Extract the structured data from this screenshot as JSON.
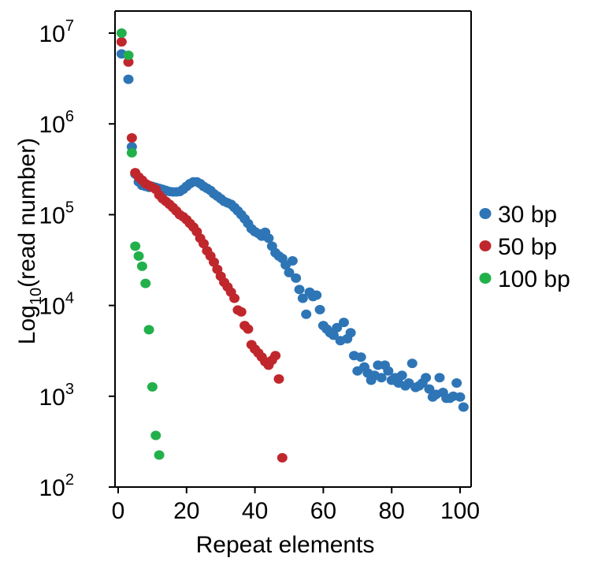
{
  "chart_data": {
    "type": "scatter",
    "xlabel": "Repeat elements",
    "ylabel": {
      "base": "Log",
      "sub": "10",
      "rest": "(read number)"
    },
    "xlim": [
      0,
      100
    ],
    "ylim_log10": [
      2,
      7
    ],
    "y_scale": "log",
    "x_ticks": [
      "0",
      "20",
      "40",
      "60",
      "80",
      "100"
    ],
    "y_ticks": [
      {
        "base": "10",
        "exp": "2"
      },
      {
        "base": "10",
        "exp": "3"
      },
      {
        "base": "10",
        "exp": "4"
      },
      {
        "base": "10",
        "exp": "5"
      },
      {
        "base": "10",
        "exp": "6"
      },
      {
        "base": "10",
        "exp": "7"
      }
    ],
    "grid": false,
    "legend_position": "right",
    "series": [
      {
        "name": "30 bp",
        "color": "#2e75b6",
        "points": [
          [
            1,
            5900000
          ],
          [
            3,
            3100000
          ],
          [
            4,
            560000
          ],
          [
            5,
            280000
          ],
          [
            6,
            230000
          ],
          [
            7,
            210000
          ],
          [
            8,
            205000
          ],
          [
            9,
            200000
          ],
          [
            10,
            205000
          ],
          [
            11,
            200000
          ],
          [
            12,
            195000
          ],
          [
            13,
            190000
          ],
          [
            14,
            185000
          ],
          [
            15,
            180000
          ],
          [
            16,
            178000
          ],
          [
            17,
            178000
          ],
          [
            18,
            180000
          ],
          [
            19,
            190000
          ],
          [
            20,
            205000
          ],
          [
            21,
            220000
          ],
          [
            22,
            230000
          ],
          [
            23,
            230000
          ],
          [
            24,
            220000
          ],
          [
            25,
            205000
          ],
          [
            26,
            195000
          ],
          [
            27,
            185000
          ],
          [
            28,
            170000
          ],
          [
            29,
            160000
          ],
          [
            30,
            150000
          ],
          [
            31,
            140000
          ],
          [
            32,
            135000
          ],
          [
            33,
            130000
          ],
          [
            34,
            120000
          ],
          [
            35,
            110000
          ],
          [
            36,
            100000
          ],
          [
            37,
            90000
          ],
          [
            38,
            80000
          ],
          [
            39,
            70000
          ],
          [
            40,
            65000
          ],
          [
            41,
            62000
          ],
          [
            42,
            58000
          ],
          [
            43,
            64000
          ],
          [
            44,
            55000
          ],
          [
            45,
            45000
          ],
          [
            46,
            38000
          ],
          [
            47,
            35000
          ],
          [
            48,
            33000
          ],
          [
            49,
            28000
          ],
          [
            50,
            23000
          ],
          [
            51,
            31000
          ],
          [
            52,
            20000
          ],
          [
            53,
            15000
          ],
          [
            54,
            12000
          ],
          [
            55,
            8000
          ],
          [
            56,
            14000
          ],
          [
            57,
            12500
          ],
          [
            58,
            13000
          ],
          [
            59,
            9000
          ],
          [
            60,
            6000
          ],
          [
            61,
            5500
          ],
          [
            62,
            5000
          ],
          [
            63,
            4700
          ],
          [
            64,
            5700
          ],
          [
            65,
            4100
          ],
          [
            66,
            6500
          ],
          [
            67,
            4300
          ],
          [
            68,
            5000
          ],
          [
            69,
            2800
          ],
          [
            70,
            1900
          ],
          [
            71,
            2700
          ],
          [
            72,
            2100
          ],
          [
            73,
            1800
          ],
          [
            74,
            1500
          ],
          [
            75,
            1700
          ],
          [
            76,
            2200
          ],
          [
            77,
            1600
          ],
          [
            78,
            2200
          ],
          [
            79,
            1900
          ],
          [
            80,
            1500
          ],
          [
            81,
            1600
          ],
          [
            82,
            1400
          ],
          [
            83,
            1700
          ],
          [
            84,
            1300
          ],
          [
            85,
            1400
          ],
          [
            86,
            2300
          ],
          [
            87,
            1250
          ],
          [
            88,
            1300
          ],
          [
            89,
            1400
          ],
          [
            90,
            1600
          ],
          [
            91,
            1200
          ],
          [
            92,
            980
          ],
          [
            93,
            1050
          ],
          [
            94,
            1600
          ],
          [
            95,
            1100
          ],
          [
            96,
            950
          ],
          [
            97,
            950
          ],
          [
            98,
            1000
          ],
          [
            99,
            1400
          ],
          [
            100,
            980
          ],
          [
            101,
            760
          ]
        ]
      },
      {
        "name": "50 bp",
        "color": "#c0272d",
        "points": [
          [
            1,
            8000000
          ],
          [
            3,
            4800000
          ],
          [
            4,
            700000
          ],
          [
            5,
            290000
          ],
          [
            6,
            260000
          ],
          [
            7,
            240000
          ],
          [
            8,
            220000
          ],
          [
            9,
            210000
          ],
          [
            10,
            200000
          ],
          [
            11,
            190000
          ],
          [
            12,
            165000
          ],
          [
            13,
            150000
          ],
          [
            14,
            140000
          ],
          [
            15,
            130000
          ],
          [
            16,
            120000
          ],
          [
            17,
            110000
          ],
          [
            18,
            100000
          ],
          [
            19,
            95000
          ],
          [
            20,
            88000
          ],
          [
            21,
            80000
          ],
          [
            22,
            73000
          ],
          [
            23,
            65000
          ],
          [
            24,
            55000
          ],
          [
            25,
            48000
          ],
          [
            26,
            40000
          ],
          [
            27,
            35000
          ],
          [
            28,
            30000
          ],
          [
            29,
            25000
          ],
          [
            30,
            21000
          ],
          [
            31,
            18000
          ],
          [
            32,
            16000
          ],
          [
            33,
            14000
          ],
          [
            34,
            12000
          ],
          [
            35,
            8900
          ],
          [
            36,
            8500
          ],
          [
            37,
            6000
          ],
          [
            38,
            5500
          ],
          [
            39,
            3700
          ],
          [
            40,
            3300
          ],
          [
            41,
            3000
          ],
          [
            42,
            2700
          ],
          [
            43,
            2400
          ],
          [
            44,
            2200
          ],
          [
            45,
            2500
          ],
          [
            46,
            2800
          ],
          [
            47,
            1550
          ],
          [
            48,
            210
          ]
        ]
      },
      {
        "name": "100 bp",
        "color": "#22b04b",
        "points": [
          [
            1,
            10000000
          ],
          [
            3,
            5700000
          ],
          [
            4,
            480000
          ],
          [
            5,
            45000
          ],
          [
            6,
            35000
          ],
          [
            7,
            27000
          ],
          [
            8,
            17500
          ],
          [
            9,
            5400
          ],
          [
            10,
            1270
          ],
          [
            11,
            370
          ],
          [
            12,
            225
          ]
        ]
      }
    ]
  }
}
